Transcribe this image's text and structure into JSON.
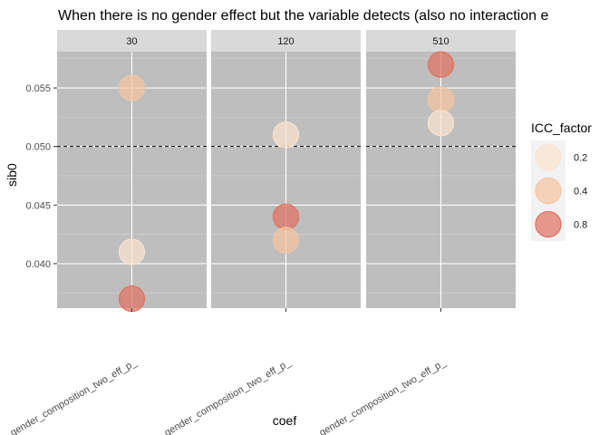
{
  "chart_data": {
    "type": "scatter",
    "title": "When there is no gender effect but the variable detects (also no interaction e",
    "xlabel": "coef",
    "ylabel": "sib0",
    "x_category": "gender_composition_two_eff_p_",
    "facets": [
      "30",
      "120",
      "510"
    ],
    "ylim": [
      0.0362,
      0.0581
    ],
    "y_ticks": [
      0.04,
      0.045,
      0.05,
      0.055
    ],
    "y_tick_labels": [
      "0.040",
      "0.045",
      "0.050",
      "0.055"
    ],
    "reference_line": {
      "y": 0.05,
      "style": "dashed"
    },
    "grid": true,
    "panel_background": "#bebebe",
    "legend": {
      "title": "ICC_factor",
      "placement": "right",
      "entries": [
        {
          "label": "0.2",
          "color": "#fbe4cf"
        },
        {
          "label": "0.4",
          "color": "#f6c49e"
        },
        {
          "label": "0.8",
          "color": "#e07060"
        }
      ]
    },
    "series": [
      {
        "icc": "0.2",
        "color": "#fbe4cf",
        "values": {
          "30": 0.041,
          "120": 0.051,
          "510": 0.052
        }
      },
      {
        "icc": "0.4",
        "color": "#f6c49e",
        "values": {
          "30": 0.055,
          "120": 0.042,
          "510": 0.054
        }
      },
      {
        "icc": "0.8",
        "color": "#e07060",
        "values": {
          "30": 0.037,
          "120": 0.044,
          "510": 0.057
        }
      }
    ]
  }
}
